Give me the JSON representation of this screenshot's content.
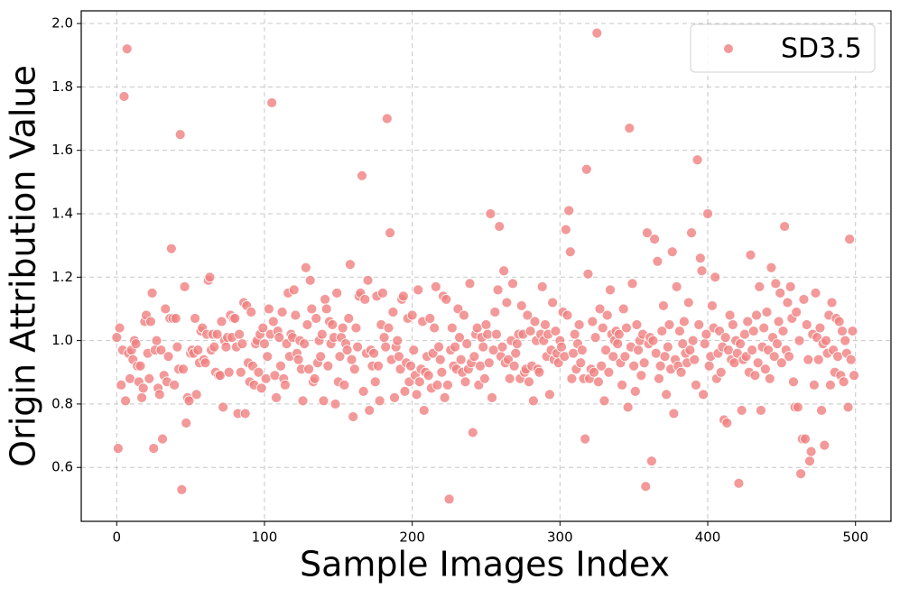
{
  "chart_data": {
    "type": "scatter",
    "xlabel": "Sample Images Index",
    "ylabel": "Origin Attribution Value",
    "xlim": [
      -24,
      524
    ],
    "ylim": [
      0.43,
      2.04
    ],
    "xticks": [
      0,
      100,
      200,
      300,
      400,
      500
    ],
    "yticks": [
      0.6,
      0.8,
      {
        "value": 1,
        "label": "1.0"
      },
      1.2,
      1.4,
      1.6,
      1.8,
      {
        "value": 2,
        "label": "2.0"
      }
    ],
    "grid": true,
    "legend": "upper right",
    "series": [
      {
        "name": "SD3.5",
        "color": "#f08080",
        "x": [
          0,
          1,
          2,
          3,
          4,
          5,
          6,
          7,
          8,
          9,
          10,
          11,
          12,
          13,
          14,
          15,
          16,
          17,
          18,
          19,
          20,
          21,
          22,
          23,
          24,
          25,
          26,
          27,
          28,
          29,
          30,
          31,
          32,
          33,
          34,
          35,
          36,
          37,
          38,
          39,
          40,
          41,
          42,
          43,
          44,
          45,
          46,
          47,
          48,
          49,
          50,
          51,
          52,
          53,
          54,
          55,
          56,
          57,
          58,
          59,
          60,
          61,
          62,
          63,
          64,
          65,
          66,
          67,
          68,
          69,
          70,
          71,
          72,
          73,
          74,
          75,
          76,
          77,
          78,
          79,
          80,
          81,
          82,
          83,
          84,
          85,
          86,
          87,
          88,
          89,
          90,
          91,
          92,
          93,
          94,
          95,
          96,
          97,
          98,
          99,
          100,
          101,
          102,
          103,
          104,
          105,
          106,
          107,
          108,
          109,
          110,
          111,
          112,
          113,
          114,
          115,
          116,
          117,
          118,
          119,
          120,
          121,
          122,
          123,
          124,
          125,
          126,
          127,
          128,
          129,
          130,
          131,
          132,
          133,
          134,
          135,
          136,
          137,
          138,
          139,
          140,
          141,
          142,
          143,
          144,
          145,
          146,
          147,
          148,
          149,
          150,
          151,
          152,
          153,
          154,
          155,
          156,
          157,
          158,
          159,
          160,
          161,
          162,
          163,
          164,
          165,
          166,
          167,
          168,
          169,
          170,
          171,
          172,
          173,
          174,
          175,
          176,
          177,
          178,
          179,
          180,
          181,
          182,
          183,
          184,
          185,
          186,
          187,
          188,
          189,
          190,
          191,
          192,
          193,
          194,
          195,
          196,
          197,
          198,
          199,
          200,
          201,
          202,
          203,
          204,
          205,
          206,
          207,
          208,
          209,
          210,
          211,
          212,
          213,
          214,
          215,
          216,
          217,
          218,
          219,
          220,
          221,
          222,
          223,
          224,
          225,
          226,
          227,
          228,
          229,
          230,
          231,
          232,
          233,
          234,
          235,
          236,
          237,
          238,
          239,
          240,
          241,
          242,
          243,
          244,
          245,
          246,
          247,
          248,
          249,
          250,
          251,
          252,
          253,
          254,
          255,
          256,
          257,
          258,
          259,
          260,
          261,
          262,
          263,
          264,
          265,
          266,
          267,
          268,
          269,
          270,
          271,
          272,
          273,
          274,
          275,
          276,
          277,
          278,
          279,
          280,
          281,
          282,
          283,
          284,
          285,
          286,
          287,
          288,
          289,
          290,
          291,
          292,
          293,
          294,
          295,
          296,
          297,
          298,
          299,
          300,
          301,
          302,
          303,
          304,
          305,
          306,
          307,
          308,
          309,
          310,
          311,
          312,
          313,
          314,
          315,
          316,
          317,
          318,
          319,
          320,
          321,
          322,
          323,
          324,
          325,
          326,
          327,
          328,
          329,
          330,
          331,
          332,
          333,
          334,
          335,
          336,
          337,
          338,
          339,
          340,
          341,
          342,
          343,
          344,
          345,
          346,
          347,
          348,
          349,
          350,
          351,
          352,
          353,
          354,
          355,
          356,
          357,
          358,
          359,
          360,
          361,
          362,
          363,
          364,
          365,
          366,
          367,
          368,
          369,
          370,
          371,
          372,
          373,
          374,
          375,
          376,
          377,
          378,
          379,
          380,
          381,
          382,
          383,
          384,
          385,
          386,
          387,
          388,
          389,
          390,
          391,
          392,
          393,
          394,
          395,
          396,
          397,
          398,
          399,
          400,
          401,
          402,
          403,
          404,
          405,
          406,
          407,
          408,
          409,
          410,
          411,
          412,
          413,
          414,
          415,
          416,
          417,
          418,
          419,
          420,
          421,
          422,
          423,
          424,
          425,
          426,
          427,
          428,
          429,
          430,
          431,
          432,
          433,
          434,
          435,
          436,
          437,
          438,
          439,
          440,
          441,
          442,
          443,
          444,
          445,
          446,
          447,
          448,
          449,
          450,
          451,
          452,
          453,
          454,
          455,
          456,
          457,
          458,
          459,
          460,
          461,
          462,
          463,
          464,
          465,
          466,
          467,
          468,
          469,
          470,
          471,
          472,
          473,
          474,
          475,
          476,
          477,
          478,
          479,
          480,
          481,
          482,
          483,
          484,
          485,
          486,
          487,
          488,
          489,
          490,
          491,
          492,
          493,
          494,
          495,
          496,
          497,
          498,
          499
        ],
        "values": [
          1.01,
          0.66,
          1.04,
          0.86,
          0.97,
          1.77,
          0.81,
          1.92,
          0.96,
          0.88,
          0.97,
          0.94,
          1.0,
          0.99,
          0.92,
          0.87,
          0.92,
          0.82,
          0.85,
          1.06,
          1.08,
          0.96,
          0.88,
          1.06,
          1.15,
          0.66,
          0.97,
          1.0,
          0.85,
          0.83,
          0.97,
          0.69,
          0.89,
          1.1,
          0.87,
          0.95,
          1.07,
          1.29,
          1.07,
          0.86,
          1.07,
          0.98,
          0.91,
          1.65,
          0.53,
          0.91,
          1.17,
          0.74,
          0.82,
          0.81,
          0.96,
          0.97,
          0.96,
          1.07,
          0.83,
          0.97,
          0.93,
          1.03,
          1.04,
          0.94,
          0.93,
          1.02,
          1.19,
          1.2,
          0.97,
          1.02,
          0.98,
          0.9,
          1.02,
          0.89,
          0.89,
          1.06,
          0.79,
          1.0,
          0.98,
          1.01,
          0.9,
          1.08,
          1.01,
          1.07,
          1.07,
          0.98,
          0.77,
          1.02,
          0.9,
          0.99,
          1.12,
          0.77,
          1.11,
          0.93,
          0.87,
          1.09,
          0.92,
          0.86,
          0.99,
          1.0,
          0.9,
          1.02,
          0.85,
          1.04,
          0.99,
          0.88,
          0.95,
          1.1,
          1.02,
          1.75,
          1.06,
          0.89,
          0.82,
          1.03,
          1.01,
          0.92,
          1.09,
          0.88,
          0.86,
          0.99,
          1.15,
          0.95,
          1.02,
          1.01,
          1.16,
          1.08,
          0.96,
          0.94,
          1.0,
          0.91,
          0.81,
          0.99,
          1.23,
          1.05,
          0.91,
          1.19,
          1.1,
          0.87,
          0.88,
          1.07,
          0.93,
          1.0,
          0.95,
          1.02,
          0.81,
          1.13,
          1.1,
          0.92,
          1.06,
          0.99,
          1.05,
          1.01,
          0.8,
          1.15,
          0.87,
          0.95,
          1.01,
          1.04,
          0.86,
          0.99,
          0.97,
          1.07,
          1.24,
          0.94,
          0.76,
          0.91,
          1.04,
          0.98,
          1.14,
          1.15,
          1.52,
          0.84,
          1.13,
          0.96,
          1.19,
          0.78,
          0.97,
          0.92,
          0.96,
          0.87,
          1.14,
          0.92,
          0.81,
          1.05,
          1.15,
          1.01,
          0.98,
          1.7,
          1.04,
          1.34,
          0.94,
          1.09,
          0.82,
          0.98,
          1.0,
          0.95,
          0.91,
          1.13,
          1.14,
          0.84,
          0.93,
          1.07,
          0.87,
          0.92,
          1.08,
          0.97,
          0.89,
          0.83,
          1.16,
          0.87,
          0.91,
          1.06,
          0.78,
          0.9,
          0.95,
          0.89,
          1.07,
          0.85,
          0.96,
          1.04,
          1.17,
          0.86,
          0.98,
          0.94,
          0.9,
          1.14,
          0.82,
          1.13,
          0.86,
          0.5,
          0.97,
          1.04,
          0.92,
          0.98,
          0.91,
          1.1,
          1.01,
          0.94,
          0.9,
          1.08,
          0.87,
          0.99,
          0.91,
          1.18,
          0.93,
          0.71,
          0.95,
          1.02,
          1.04,
          0.86,
          0.92,
          1.01,
          0.98,
          0.88,
          1.05,
          1.02,
          0.93,
          1.4,
          0.82,
          0.97,
          1.09,
          1.02,
          1.16,
          1.36,
          0.95,
          0.98,
          1.22,
          0.93,
          1.12,
          0.94,
          0.88,
          1.0,
          1.18,
          0.92,
          0.96,
          0.99,
          1.02,
          0.88,
          1.11,
          1.02,
          0.9,
          0.91,
          1.08,
          0.87,
          1.03,
          0.92,
          0.81,
          1.06,
          1.0,
          0.91,
          0.9,
          1.02,
          1.17,
          1.0,
          1.05,
          0.95,
          1.02,
          0.83,
          0.97,
          1.12,
          0.94,
          1.03,
          0.96,
          0.93,
          1.0,
          0.98,
          1.09,
          0.95,
          1.35,
          1.08,
          1.41,
          1.28,
          0.88,
          0.96,
          1.02,
          0.91,
          0.99,
          1.05,
          0.93,
          0.97,
          0.88,
          0.69,
          1.54,
          1.21,
          0.88,
          0.91,
          1.06,
          0.9,
          1.01,
          1.97,
          0.87,
          1.1,
          0.92,
          1.04,
          0.81,
          0.97,
          1.08,
          0.9,
          1.16,
          1.02,
          0.95,
          1.0,
          1.03,
          0.99,
          1.02,
          0.93,
          0.86,
          1.1,
          0.95,
          1.04,
          0.79,
          1.67,
          0.98,
          1.18,
          0.92,
          0.84,
          1.05,
          0.97,
          1.0,
          0.89,
          1.02,
          0.93,
          0.54,
          1.34,
          0.99,
          1.01,
          0.62,
          1.0,
          1.32,
          0.96,
          1.25,
          0.88,
          0.92,
          1.03,
          1.11,
          0.95,
          0.83,
          0.98,
          1.05,
          0.91,
          1.28,
          0.77,
          0.94,
          1.17,
          0.92,
          1.03,
          0.9,
          0.99,
          1.06,
          0.96,
          0.93,
          1.12,
          0.97,
          1.34,
          1.0,
          0.94,
          0.86,
          1.57,
          1.05,
          1.26,
          1.22,
          0.83,
          0.99,
          1.02,
          1.4,
          0.92,
          0.95,
          1.11,
          1.04,
          1.2,
          0.88,
          0.96,
          1.03,
          0.9,
          0.98,
          0.75,
          1.01,
          0.74,
          0.97,
          1.08,
          0.94,
          1.05,
          0.93,
          1.0,
          0.96,
          0.55,
          0.99,
          0.78,
          0.94,
          1.02,
          0.95,
          1.06,
          0.9,
          1.27,
          0.97,
          1.03,
          0.89,
          1.08,
          0.93,
          1.17,
          0.78,
          0.98,
          1.04,
          0.91,
          1.09,
          0.97,
          0.88,
          1.23,
          1.01,
          0.95,
          1.18,
          0.99,
          1.06,
          1.15,
          0.93,
          1.03,
          1.36,
          0.97,
          1.12,
          0.95,
          1.17,
          1.07,
          0.87,
          0.79,
          1.09,
          0.79,
          1.0,
          0.58,
          0.69,
          1.13,
          0.69,
          1.05,
          0.94,
          0.62,
          0.65,
          1.02,
          0.86,
          1.15,
          1.01,
          0.94,
          1.04,
          0.78,
          0.99,
          0.67,
          1.0,
          0.96,
          1.08,
          0.86,
          1.12,
          0.97,
          0.9,
          1.07,
          0.95,
          1.06,
          0.89,
          1.03,
          0.87,
          1.0,
          0.96,
          0.79,
          1.32,
          0.94,
          1.03,
          0.89
        ]
      }
    ]
  }
}
